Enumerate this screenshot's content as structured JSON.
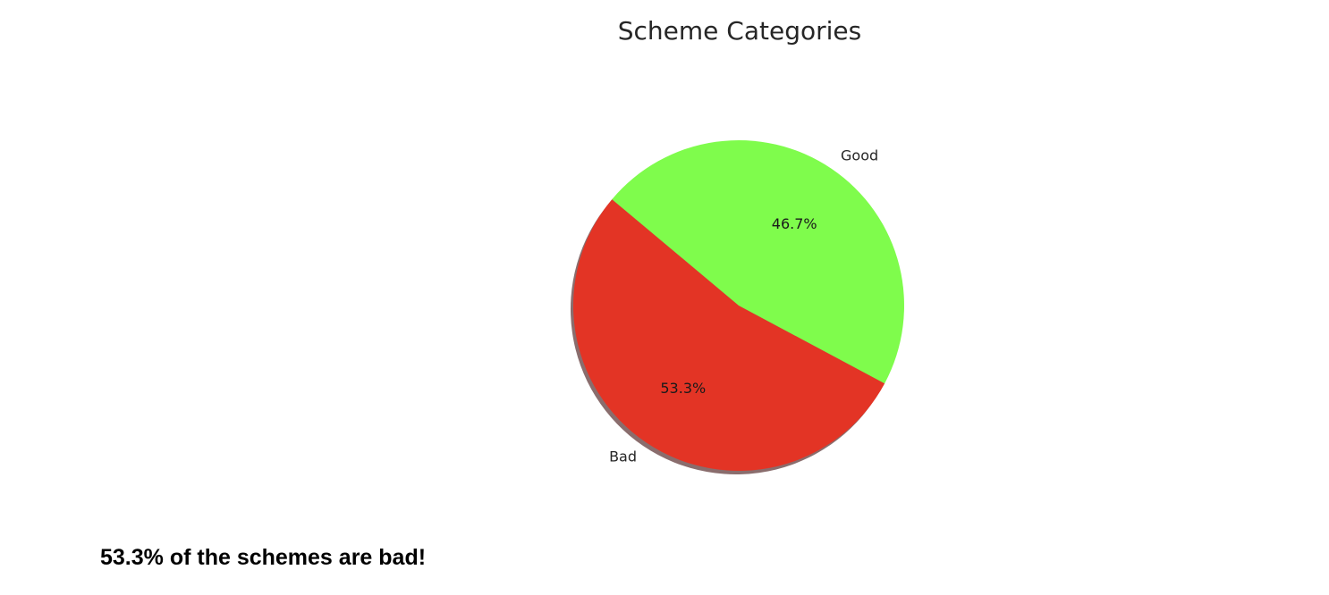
{
  "chart_data": {
    "type": "pie",
    "title": "Scheme Categories",
    "start_angle_deg": 140,
    "shadow": true,
    "slices": [
      {
        "label": "Bad",
        "value": 53.3,
        "pct_label": "53.3%",
        "color": "#e33425"
      },
      {
        "label": "Good",
        "value": 46.7,
        "pct_label": "46.7%",
        "color": "#7ffc4c"
      }
    ]
  },
  "summary": {
    "text": "53.3% of the schemes are bad!"
  }
}
